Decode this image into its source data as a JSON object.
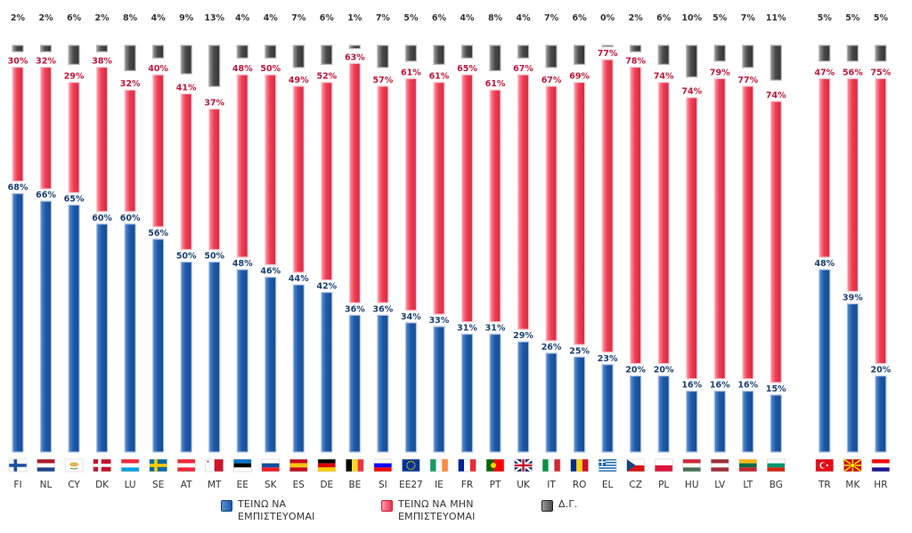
{
  "chart_data": {
    "type": "bar",
    "stacked": true,
    "orientation": "vertical",
    "categories": [
      "FI",
      "NL",
      "CY",
      "DK",
      "LU",
      "SE",
      "AT",
      "MT",
      "EE",
      "SK",
      "ES",
      "DE",
      "BE",
      "SI",
      "EE27",
      "IE",
      "FR",
      "PT",
      "UK",
      "IT",
      "RO",
      "EL",
      "CZ",
      "PL",
      "HU",
      "LV",
      "LT",
      "BG",
      "TR",
      "MK",
      "HR"
    ],
    "group_gap_before": [
      "TR"
    ],
    "series": [
      {
        "name": "ΤΕΙΝΩ ΝΑ ΕΜΠΙΣΤΕΥΟΜΑΙ",
        "color": "#1e5aa8",
        "values": [
          68,
          66,
          65,
          60,
          60,
          56,
          50,
          50,
          48,
          46,
          44,
          42,
          36,
          36,
          34,
          33,
          31,
          31,
          29,
          26,
          25,
          23,
          20,
          20,
          16,
          16,
          16,
          15,
          48,
          39,
          20
        ]
      },
      {
        "name": "ΤΕΙΝΩ ΝΑ ΜΗΝ ΕΜΠΙΣΤΕΥΟΜΑΙ",
        "color": "#e8354d",
        "values": [
          30,
          32,
          29,
          38,
          32,
          40,
          41,
          37,
          48,
          50,
          49,
          52,
          63,
          57,
          61,
          61,
          65,
          61,
          67,
          67,
          69,
          77,
          78,
          74,
          74,
          79,
          77,
          74,
          47,
          56,
          75
        ]
      },
      {
        "name": "Δ.Γ.",
        "color": "#4a4a4a",
        "values": [
          2,
          2,
          6,
          2,
          8,
          4,
          9,
          13,
          4,
          4,
          7,
          6,
          1,
          7,
          5,
          6,
          4,
          8,
          4,
          7,
          6,
          0,
          2,
          6,
          10,
          5,
          7,
          11,
          5,
          5,
          5
        ]
      }
    ],
    "ylim": [
      0,
      100
    ],
    "label_format": "{value}%",
    "legend_position": "bottom",
    "title": "",
    "xlabel": "",
    "ylabel": ""
  },
  "flag_colors": {
    "FI": [
      "#ffffff",
      "#1a4fa0",
      "#ffffff"
    ],
    "NL": [
      "#ae1c28",
      "#ffffff",
      "#21468b"
    ],
    "CY": [
      "#ffffff",
      "#e8b04a",
      "#ffffff"
    ],
    "DK": [
      "#c8102e",
      "#ffffff",
      "#c8102e"
    ],
    "LU": [
      "#ed2939",
      "#ffffff",
      "#00a1de"
    ],
    "SE": [
      "#006aa7",
      "#fecc00",
      "#006aa7"
    ],
    "AT": [
      "#ed2939",
      "#ffffff",
      "#ed2939"
    ],
    "MT": [
      "#ffffff",
      "#ffffff",
      "#cf142b"
    ],
    "EE": [
      "#0072ce",
      "#000000",
      "#ffffff"
    ],
    "SK": [
      "#ffffff",
      "#0b4ea2",
      "#ee1c25"
    ],
    "ES": [
      "#c60b1e",
      "#ffc400",
      "#c60b1e"
    ],
    "DE": [
      "#000000",
      "#dd0000",
      "#ffce00"
    ],
    "BE": [
      "#000000",
      "#fdda24",
      "#ef3340"
    ],
    "SI": [
      "#ffffff",
      "#0000ff",
      "#ff0000"
    ],
    "EE27": [
      "#003399",
      "#003399",
      "#003399"
    ],
    "IE": [
      "#169b62",
      "#ffffff",
      "#ff883e"
    ],
    "FR": [
      "#002395",
      "#ffffff",
      "#ed2939"
    ],
    "PT": [
      "#006600",
      "#ff0000",
      "#ff0000"
    ],
    "UK": [
      "#012169",
      "#c8102e",
      "#012169"
    ],
    "IT": [
      "#009246",
      "#ffffff",
      "#ce2b37"
    ],
    "RO": [
      "#002b7f",
      "#fcd116",
      "#ce1126"
    ],
    "EL": [
      "#0d5eaf",
      "#ffffff",
      "#0d5eaf"
    ],
    "CZ": [
      "#ffffff",
      "#d7141a",
      "#11457e"
    ],
    "PL": [
      "#ffffff",
      "#ffffff",
      "#dc143c"
    ],
    "HU": [
      "#ce2939",
      "#ffffff",
      "#477050"
    ],
    "LV": [
      "#9e3039",
      "#ffffff",
      "#9e3039"
    ],
    "LT": [
      "#fdb913",
      "#006a44",
      "#c1272d"
    ],
    "BG": [
      "#ffffff",
      "#00966e",
      "#d62612"
    ],
    "TR": [
      "#e30a17",
      "#e30a17",
      "#e30a17"
    ],
    "MK": [
      "#d20000",
      "#ffe600",
      "#d20000"
    ],
    "HR": [
      "#ff0000",
      "#ffffff",
      "#171796"
    ]
  },
  "legend": [
    {
      "label": "ΤΕΙΝΩ ΝΑ ΕΜΠΙΣΤΕΥΟΜΑΙ",
      "color": "#1e5aa8"
    },
    {
      "label": "ΤΕΙΝΩ ΝΑ ΜΗΝ ΕΜΠΙΣΤΕΥΟΜΑΙ",
      "color": "#e8354d"
    },
    {
      "label": "Δ.Γ.",
      "color": "#4a4a4a"
    }
  ]
}
